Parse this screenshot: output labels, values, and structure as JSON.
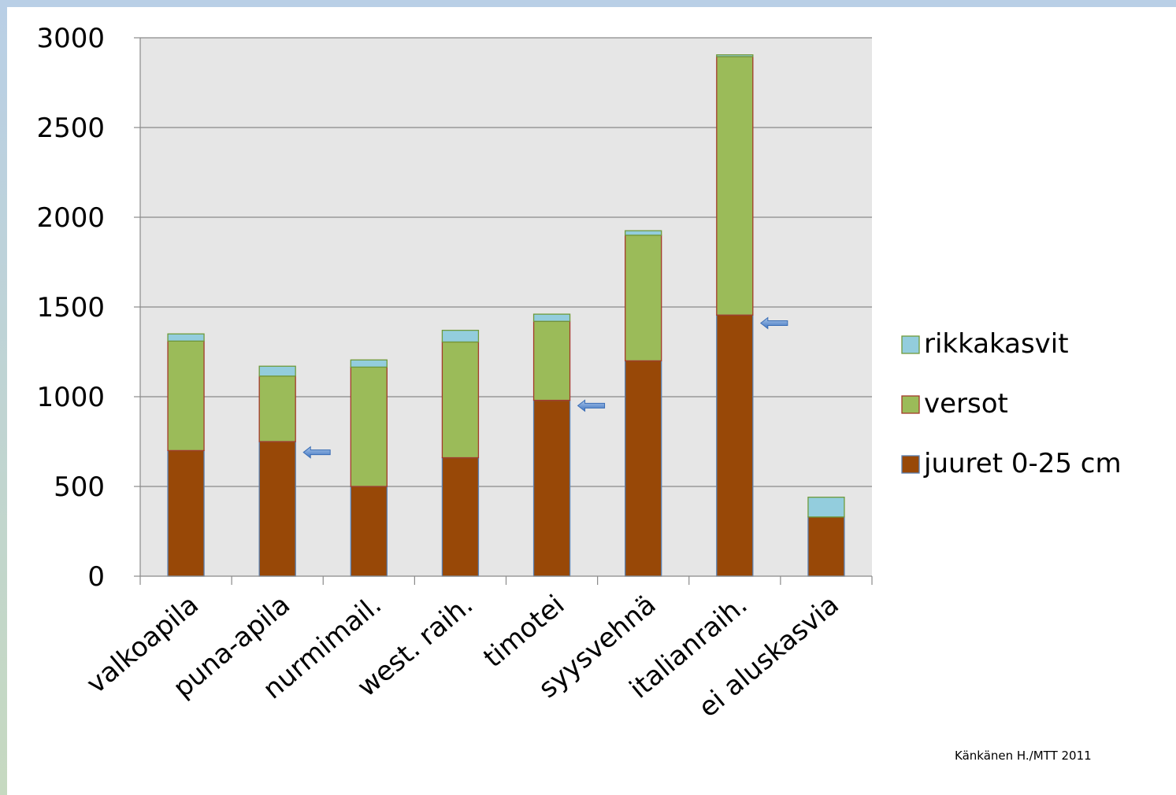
{
  "chart_data": {
    "type": "bar",
    "stacked": true,
    "categories": [
      "valkoapila",
      "puna-apila",
      "nurmimail.",
      "west. raih.",
      "timotei",
      "syysvehnä",
      "italianraih.",
      "ei aluskasvia"
    ],
    "series": [
      {
        "name": "juuret 0-25 cm",
        "color": "#984807",
        "values": [
          700,
          750,
          500,
          660,
          980,
          1200,
          1455,
          330
        ]
      },
      {
        "name": "versot",
        "color": "#9bbb59",
        "values": [
          610,
          365,
          665,
          645,
          440,
          700,
          1440,
          0
        ]
      },
      {
        "name": "rikkakasvit",
        "color": "#93cddd",
        "values": [
          40,
          55,
          40,
          65,
          40,
          25,
          10,
          110
        ]
      }
    ],
    "ylim": [
      0,
      3000
    ],
    "yticks": [
      0,
      500,
      1000,
      1500,
      2000,
      2500,
      3000
    ],
    "legend_order": [
      "rikkakasvit",
      "versot",
      "juuret 0-25 cm"
    ],
    "legend_position": "right",
    "grid": true,
    "plot_background": "#e6e6e6",
    "annotations": {
      "arrows_at": [
        {
          "category": "puna-apila",
          "value": 690
        },
        {
          "category": "timotei",
          "value": 950
        },
        {
          "category": "italianraih.",
          "value": 1410
        }
      ],
      "arrow_color": "#4f81bd"
    },
    "credit": "Känkänen H./MTT 2011"
  }
}
